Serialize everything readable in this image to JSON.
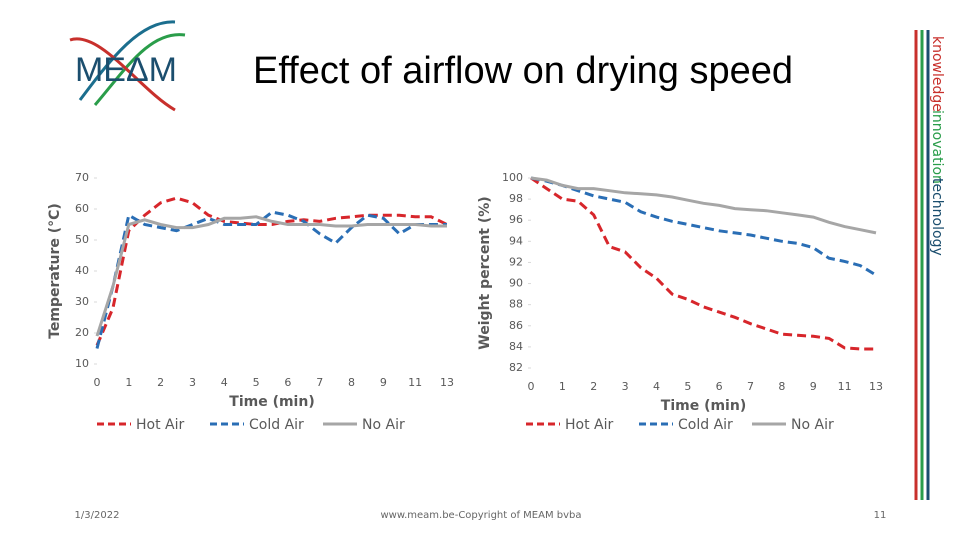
{
  "header": {
    "title": "Effect of airflow on drying speed",
    "logo": "MEΔM"
  },
  "side": {
    "words": [
      "knowledge",
      "innovation",
      "technology"
    ]
  },
  "footer": {
    "date": "1/3/2022",
    "copyright": "www.meam.be-Copyright of MEAM bvba",
    "page": "11"
  },
  "chart_data": [
    {
      "type": "line",
      "y_label": "Temperature (°C)",
      "x_label": "Time (min)",
      "categories": [
        "0",
        null,
        "1",
        null,
        "2",
        null,
        "3",
        null,
        "4",
        null,
        "5",
        null,
        "6",
        null,
        "7",
        null,
        "8",
        null,
        "9",
        null,
        "11",
        null,
        "13"
      ],
      "ylim": [
        10,
        70
      ],
      "yticks": [
        10,
        20,
        30,
        40,
        50,
        60,
        70
      ],
      "legend": "bottom",
      "series": [
        {
          "name": "Hot Air",
          "color": "#d7262b",
          "dashed": true,
          "values": [
            16,
            28,
            53,
            58,
            62,
            63.5,
            62,
            58,
            56,
            55.5,
            55,
            55,
            56,
            56.5,
            56,
            57,
            57.5,
            58,
            58,
            58,
            57.5,
            57.5,
            55
          ]
        },
        {
          "name": "Cold Air",
          "color": "#2a6eb5",
          "dashed": true,
          "values": [
            15,
            35,
            58,
            55,
            54,
            53,
            55,
            57,
            55,
            55,
            55,
            59,
            58,
            56,
            52,
            49,
            54,
            58,
            57,
            52,
            55,
            55,
            55
          ]
        },
        {
          "name": "No Air",
          "color": "#a6a6a6",
          "dashed": false,
          "values": [
            19,
            35,
            55,
            56.5,
            55,
            54,
            54,
            55,
            57,
            57,
            57.5,
            56,
            55,
            55,
            55,
            54.5,
            54.5,
            55,
            55,
            55,
            55,
            54.5,
            54.5
          ]
        }
      ]
    },
    {
      "type": "line",
      "y_label": "Weight percent (%)",
      "x_label": "Time (min)",
      "categories": [
        "0",
        null,
        "1",
        null,
        "2",
        null,
        "3",
        null,
        "4",
        null,
        "5",
        null,
        "6",
        null,
        "7",
        null,
        "8",
        null,
        "9",
        null,
        "11",
        null,
        "13"
      ],
      "ylim": [
        82,
        100
      ],
      "yticks": [
        82,
        84,
        86,
        88,
        90,
        92,
        94,
        96,
        98,
        100
      ],
      "legend": "bottom",
      "series": [
        {
          "name": "Hot Air",
          "color": "#d7262b",
          "dashed": true,
          "values": [
            100,
            99,
            98,
            97.8,
            96.5,
            93.5,
            93,
            91.5,
            90.5,
            89,
            88.5,
            87.8,
            87.3,
            86.8,
            86.2,
            85.7,
            85.2,
            85.1,
            85,
            84.8,
            83.9,
            83.8,
            83.8
          ]
        },
        {
          "name": "Cold Air",
          "color": "#2a6eb5",
          "dashed": true,
          "values": [
            100,
            99.7,
            99.3,
            98.8,
            98.3,
            98,
            97.7,
            96.8,
            96.3,
            95.9,
            95.6,
            95.3,
            95,
            94.8,
            94.6,
            94.3,
            94,
            93.8,
            93.4,
            92.4,
            92.1,
            91.7,
            90.8
          ]
        },
        {
          "name": "No Air",
          "color": "#a6a6a6",
          "dashed": false,
          "values": [
            100,
            99.8,
            99.3,
            99,
            99,
            98.8,
            98.6,
            98.5,
            98.4,
            98.2,
            97.9,
            97.6,
            97.4,
            97.1,
            97,
            96.9,
            96.7,
            96.5,
            96.3,
            95.8,
            95.4,
            95.1,
            94.8
          ]
        }
      ]
    }
  ]
}
